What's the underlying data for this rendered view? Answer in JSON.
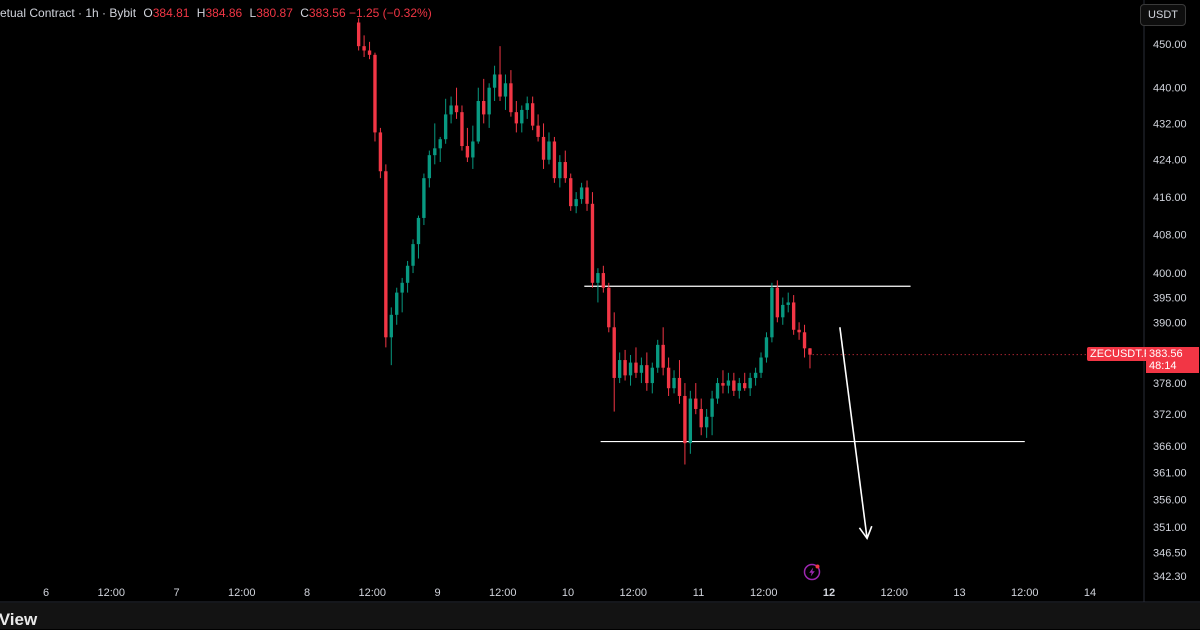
{
  "legend": {
    "symbol_text": "etual Contract · 1h · Bybit",
    "open_label": "O",
    "open": "384.81",
    "high_label": "H",
    "high": "384.86",
    "low_label": "L",
    "low": "380.87",
    "close_label": "C",
    "close": "383.56",
    "change": "−1.25 (−0.32%)"
  },
  "currency_button": "USDT",
  "symbol_tag": "ZECUSDT.P",
  "last_price_tag": "383.56",
  "countdown_tag": "48:14",
  "watermark": "ngView",
  "colors": {
    "up": "#089981",
    "down": "#f23645",
    "background": "#000000",
    "lines": "#ffffff",
    "alert_icon": "#9c27b0"
  },
  "icons": {
    "alert": "lightning-alert-icon"
  },
  "chart_data": {
    "type": "candlestick",
    "title": "",
    "timeframe": "1h",
    "x_tick_labels": [
      "6",
      "12:00",
      "7",
      "12:00",
      "8",
      "12:00",
      "9",
      "12:00",
      "10",
      "12:00",
      "11",
      "12:00",
      "12",
      "12:00",
      "13",
      "12:00",
      "14"
    ],
    "y_tick_labels": [
      "450.00",
      "440.00",
      "432.00",
      "424.00",
      "416.00",
      "408.00",
      "400.00",
      "395.00",
      "390.00",
      "378.00",
      "372.00",
      "366.00",
      "361.00",
      "356.00",
      "351.00",
      "346.50",
      "342.30"
    ],
    "y_scale": "log",
    "ylim": [
      342.3,
      452
    ],
    "candle_interval_hours": 1,
    "candles_start": "8 09:00",
    "ohlc": [
      [
        455.0,
        456.0,
        448.5,
        449.5
      ],
      [
        449.5,
        452.0,
        447.0,
        448.5
      ],
      [
        448.5,
        450.5,
        446.5,
        447.5
      ],
      [
        447.5,
        448.0,
        428.0,
        430.0
      ],
      [
        430.0,
        431.0,
        420.0,
        421.5
      ],
      [
        421.5,
        423.0,
        385.0,
        387.0
      ],
      [
        387.0,
        393.0,
        381.5,
        391.5
      ],
      [
        391.5,
        397.0,
        389.5,
        396.0
      ],
      [
        396.0,
        399.0,
        392.0,
        398.0
      ],
      [
        398.0,
        402.5,
        396.0,
        401.5
      ],
      [
        401.5,
        407.0,
        400.0,
        406.0
      ],
      [
        406.0,
        412.0,
        403.0,
        411.5
      ],
      [
        411.5,
        421.0,
        410.0,
        420.0
      ],
      [
        420.0,
        426.0,
        418.0,
        425.0
      ],
      [
        425.0,
        432.0,
        423.0,
        426.5
      ],
      [
        426.5,
        429.0,
        423.5,
        428.5
      ],
      [
        428.5,
        437.5,
        427.5,
        434.0
      ],
      [
        434.0,
        438.0,
        432.0,
        436.0
      ],
      [
        436.0,
        440.0,
        433.0,
        434.5
      ],
      [
        434.5,
        436.0,
        426.0,
        427.0
      ],
      [
        427.0,
        431.0,
        423.5,
        424.5
      ],
      [
        424.5,
        431.5,
        422.0,
        428.0
      ],
      [
        428.0,
        440.0,
        427.5,
        437.0
      ],
      [
        437.0,
        442.0,
        432.0,
        434.0
      ],
      [
        434.0,
        441.0,
        431.0,
        440.0
      ],
      [
        440.0,
        445.0,
        437.0,
        443.0
      ],
      [
        443.0,
        449.5,
        437.0,
        438.0
      ],
      [
        438.0,
        443.0,
        435.0,
        441.0
      ],
      [
        441.0,
        444.0,
        433.5,
        434.5
      ],
      [
        434.5,
        437.0,
        430.0,
        432.0
      ],
      [
        432.0,
        436.0,
        430.0,
        435.0
      ],
      [
        435.0,
        438.0,
        433.0,
        436.5
      ],
      [
        436.5,
        438.0,
        430.5,
        431.5
      ],
      [
        431.5,
        434.0,
        428.0,
        429.0
      ],
      [
        429.0,
        432.0,
        422.0,
        424.0
      ],
      [
        424.0,
        430.0,
        423.0,
        428.0
      ],
      [
        428.0,
        429.0,
        419.0,
        420.0
      ],
      [
        420.0,
        425.0,
        418.0,
        423.5
      ],
      [
        423.5,
        426.0,
        419.0,
        420.0
      ],
      [
        420.0,
        421.0,
        413.0,
        414.0
      ],
      [
        414.0,
        417.0,
        412.5,
        415.5
      ],
      [
        415.5,
        419.0,
        414.5,
        418.0
      ],
      [
        418.0,
        419.5,
        413.0,
        414.5
      ],
      [
        414.5,
        417.0,
        397.0,
        398.0
      ],
      [
        398.0,
        401.0,
        394.0,
        400.0
      ],
      [
        400.0,
        401.5,
        396.0,
        397.0
      ],
      [
        397.0,
        398.0,
        388.0,
        389.0
      ],
      [
        389.0,
        392.0,
        372.5,
        379.0
      ],
      [
        379.0,
        384.0,
        378.0,
        382.5
      ],
      [
        382.5,
        384.5,
        378.5,
        379.5
      ],
      [
        379.5,
        383.5,
        377.5,
        382.0
      ],
      [
        382.0,
        385.0,
        379.0,
        380.0
      ],
      [
        380.0,
        383.0,
        378.0,
        381.5
      ],
      [
        381.5,
        384.0,
        376.5,
        378.0
      ],
      [
        378.0,
        382.0,
        376.0,
        381.0
      ],
      [
        381.0,
        386.5,
        380.0,
        385.5
      ],
      [
        385.5,
        389.0,
        379.5,
        381.0
      ],
      [
        381.0,
        383.0,
        375.5,
        377.0
      ],
      [
        377.0,
        380.5,
        376.0,
        379.0
      ],
      [
        379.0,
        382.5,
        374.0,
        375.5
      ],
      [
        375.5,
        378.0,
        362.5,
        366.5
      ],
      [
        366.5,
        376.5,
        364.5,
        375.0
      ],
      [
        375.0,
        378.0,
        372.0,
        373.0
      ],
      [
        373.0,
        375.0,
        368.0,
        369.5
      ],
      [
        369.5,
        373.0,
        367.5,
        371.5
      ],
      [
        371.5,
        376.5,
        368.0,
        375.0
      ],
      [
        375.0,
        379.0,
        374.0,
        378.0
      ],
      [
        378.0,
        380.5,
        376.0,
        377.5
      ],
      [
        377.5,
        380.0,
        376.0,
        378.5
      ],
      [
        378.5,
        380.0,
        375.5,
        376.5
      ],
      [
        376.5,
        379.0,
        375.0,
        378.0
      ],
      [
        378.0,
        380.0,
        376.5,
        377.0
      ],
      [
        377.0,
        380.0,
        375.5,
        379.0
      ],
      [
        379.0,
        381.0,
        377.5,
        380.0
      ],
      [
        380.0,
        384.0,
        379.0,
        383.0
      ],
      [
        383.0,
        388.0,
        382.0,
        387.0
      ],
      [
        387.0,
        398.0,
        386.0,
        397.0
      ],
      [
        397.0,
        398.5,
        390.0,
        391.0
      ],
      [
        391.0,
        395.0,
        389.5,
        393.5
      ],
      [
        393.5,
        396.0,
        392.0,
        394.0
      ],
      [
        394.0,
        395.5,
        387.5,
        388.5
      ],
      [
        388.5,
        390.0,
        386.5,
        388.0
      ],
      [
        388.0,
        389.5,
        383.0,
        384.81
      ],
      [
        384.81,
        384.86,
        380.87,
        383.56
      ]
    ],
    "horizontal_lines": [
      {
        "price": 397.3,
        "from": "10 03:00",
        "to": "12 15:00"
      },
      {
        "price": 366.8,
        "from": "10 06:00",
        "to": "13 12:00"
      }
    ],
    "arrow": {
      "from_time": "12 02:00",
      "from_price": 389,
      "to_time": "12 07:00",
      "to_price": 349,
      "direction": "down"
    }
  }
}
